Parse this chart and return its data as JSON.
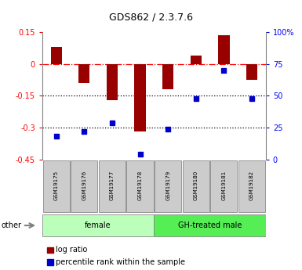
{
  "title": "GDS862 / 2.3.7.6",
  "samples": [
    "GSM19175",
    "GSM19176",
    "GSM19177",
    "GSM19178",
    "GSM19179",
    "GSM19180",
    "GSM19181",
    "GSM19182"
  ],
  "log_ratio": [
    0.08,
    -0.09,
    -0.17,
    -0.32,
    -0.12,
    0.04,
    0.135,
    -0.075
  ],
  "percentile_rank_pct": [
    18,
    22,
    29,
    4,
    24,
    48,
    70,
    48
  ],
  "groups": [
    {
      "label": "female",
      "indices": [
        0,
        1,
        2,
        3
      ],
      "color": "#bbffbb"
    },
    {
      "label": "GH-treated male",
      "indices": [
        4,
        5,
        6,
        7
      ],
      "color": "#55ee55"
    }
  ],
  "ylim_left": [
    -0.45,
    0.15
  ],
  "ylim_right": [
    0,
    100
  ],
  "yticks_left": [
    0.15,
    0.0,
    -0.15,
    -0.3,
    -0.45
  ],
  "yticks_left_labels": [
    "0.15",
    "0",
    "-0.15",
    "-0.3",
    "-0.45"
  ],
  "yticks_right": [
    100,
    75,
    50,
    25,
    0
  ],
  "yticks_right_labels": [
    "100%",
    "75",
    "50",
    "25",
    "0"
  ],
  "bar_color": "#990000",
  "dot_color": "#0000cc",
  "dotted_lines": [
    -0.15,
    -0.3
  ],
  "background_color": "#ffffff",
  "legend1": "log ratio",
  "legend2": "percentile rank within the sample",
  "bar_width": 0.4
}
